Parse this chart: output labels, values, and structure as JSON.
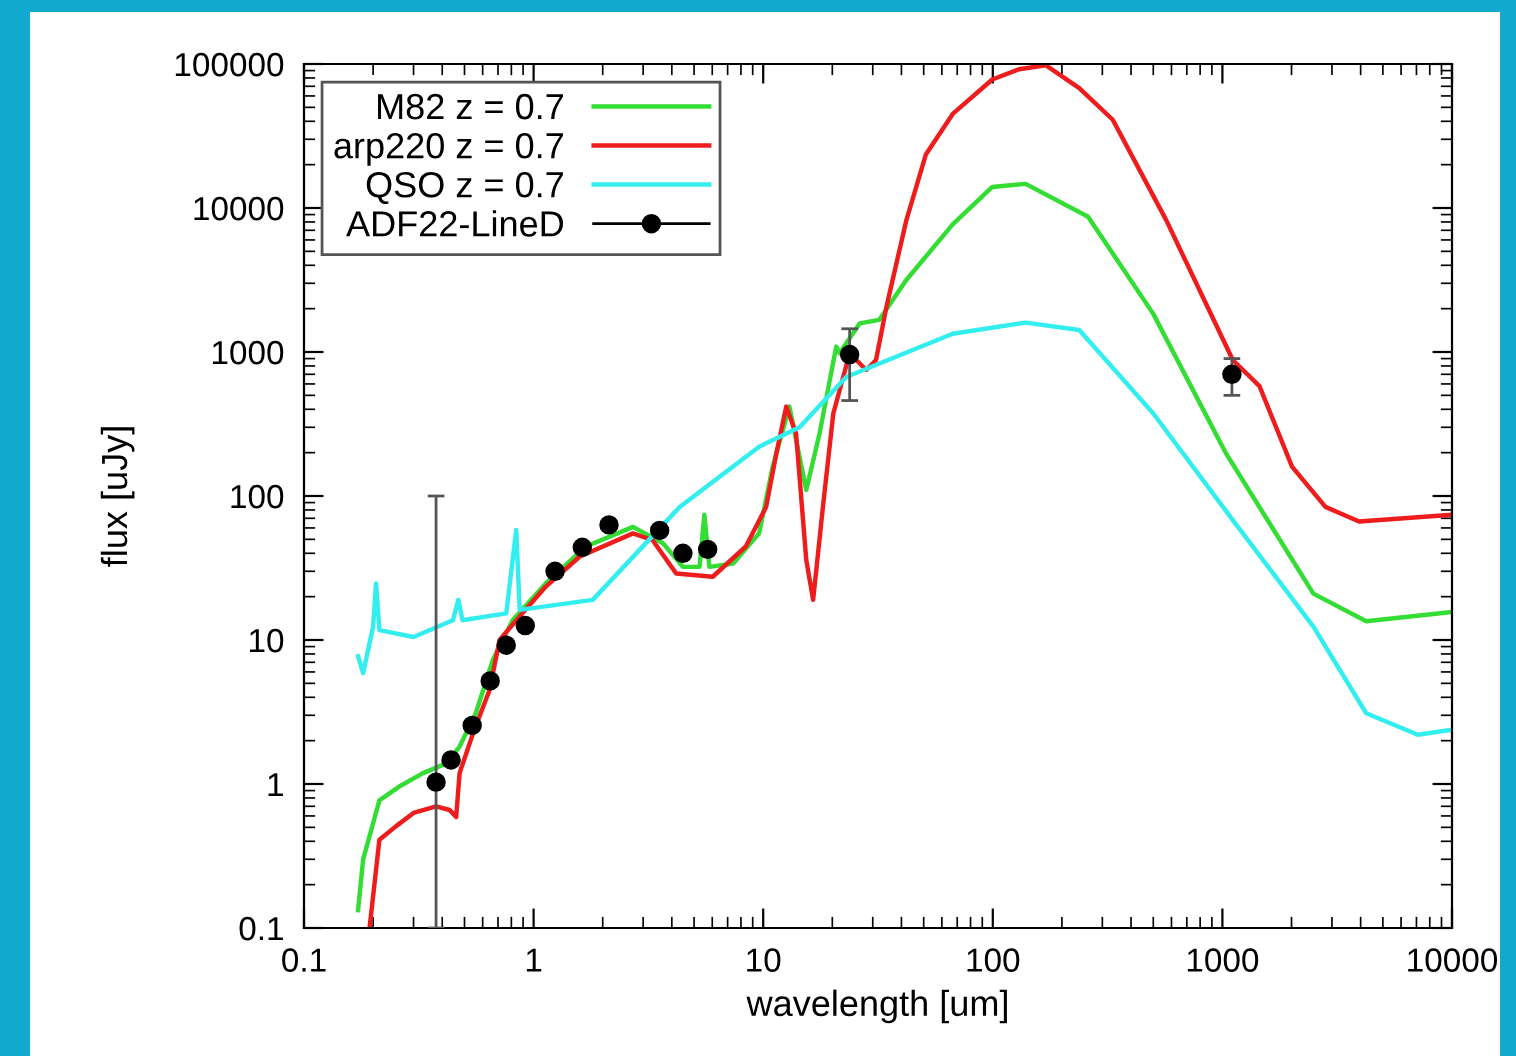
{
  "chart_data": {
    "type": "line",
    "xlabel": "wavelength [um]",
    "ylabel": "flux [uJy]",
    "log": "xy",
    "xlim": [
      0.1,
      10000
    ],
    "ylim": [
      0.1,
      100000
    ],
    "xticks": [
      0.1,
      1,
      10,
      100,
      1000,
      10000
    ],
    "yticks": [
      0.1,
      1,
      10,
      100,
      1000,
      10000,
      100000
    ],
    "grid": false,
    "legend": "top left",
    "series": [
      {
        "name": "M82 z = 0.7",
        "color": "#33dd33",
        "x": [
          0.172,
          0.181,
          0.213,
          0.26,
          0.33,
          0.417,
          0.476,
          0.56,
          0.665,
          0.81,
          1.13,
          1.69,
          2.71,
          3.66,
          4.47,
          5.28,
          5.54,
          5.83,
          7.4,
          9.6,
          11.0,
          13.0,
          15.4,
          17.6,
          20.8,
          21.5,
          26.3,
          32,
          42,
          66.9,
          99.5,
          139,
          260,
          500,
          1040,
          2490,
          4230,
          9800
        ],
        "values": [
          0.133,
          0.3,
          0.77,
          0.96,
          1.19,
          1.39,
          1.82,
          3.1,
          7.3,
          13.7,
          24.7,
          44.6,
          61,
          47,
          32.2,
          32.2,
          74,
          32.2,
          34,
          55,
          160,
          418,
          110,
          272,
          1090,
          980,
          1580,
          1670,
          3160,
          7700,
          14000,
          14700,
          8700,
          1840,
          196,
          21,
          13.5,
          15.6
        ]
      },
      {
        "name": "arp220 z = 0.7",
        "color": "#ee1c1c",
        "x": [
          0.193,
          0.213,
          0.252,
          0.3,
          0.376,
          0.431,
          0.46,
          0.476,
          0.545,
          0.643,
          0.711,
          0.84,
          1.13,
          1.59,
          2.71,
          3.3,
          4.18,
          6.03,
          8.4,
          10.3,
          11.4,
          12.6,
          13.9,
          15.4,
          16.5,
          18.2,
          20.2,
          23.8,
          28.1,
          31,
          34.4,
          42,
          51.1,
          66.9,
          99.5,
          130,
          170,
          238,
          333,
          570,
          1110,
          1450,
          2010,
          2810,
          3940,
          9800
        ],
        "values": [
          0.1,
          0.41,
          0.51,
          0.63,
          0.7,
          0.66,
          0.59,
          1.19,
          2.25,
          4.5,
          10,
          13.7,
          23.5,
          38,
          55,
          49.3,
          29,
          27.5,
          44.6,
          84,
          196,
          418,
          272,
          36,
          19,
          84,
          374,
          980,
          750,
          880,
          2050,
          8200,
          23500,
          45000,
          78000,
          92000,
          98000,
          68000,
          41000,
          8200,
          880,
          580,
          160,
          84,
          66.5,
          74
        ]
      },
      {
        "name": "QSO z = 0.7",
        "color": "#33eeee",
        "x": [
          0.172,
          0.181,
          0.2,
          0.206,
          0.213,
          0.3,
          0.445,
          0.47,
          0.49,
          0.76,
          0.84,
          0.87,
          1.81,
          4.33,
          9.6,
          14.4,
          23,
          66.9,
          139,
          238,
          500,
          1110,
          2490,
          4230,
          7100,
          9800
        ],
        "values": [
          7.7,
          5.9,
          12.4,
          24.7,
          11.7,
          10.5,
          13.7,
          19,
          13.7,
          15.3,
          58,
          16.2,
          19,
          84,
          220,
          300,
          670,
          1340,
          1600,
          1420,
          374,
          68,
          12.4,
          3.1,
          2.2,
          2.37
        ]
      },
      {
        "name": "ADF22-LineD",
        "type": "scatter",
        "color": "#000000",
        "marker": "circle",
        "x": [
          0.376,
          0.437,
          0.54,
          0.647,
          0.76,
          0.92,
          1.24,
          1.63,
          2.13,
          3.54,
          4.47,
          5.73,
          23.8,
          1100
        ],
        "values": [
          1.03,
          1.47,
          2.55,
          5.2,
          9.2,
          12.6,
          30,
          44,
          63,
          57.6,
          40,
          42.6,
          960,
          700
        ],
        "errors": [
          [
            0.1,
            100
          ],
          null,
          null,
          null,
          null,
          null,
          null,
          null,
          null,
          null,
          null,
          null,
          [
            460,
            1450
          ],
          [
            500,
            900
          ]
        ]
      }
    ]
  }
}
